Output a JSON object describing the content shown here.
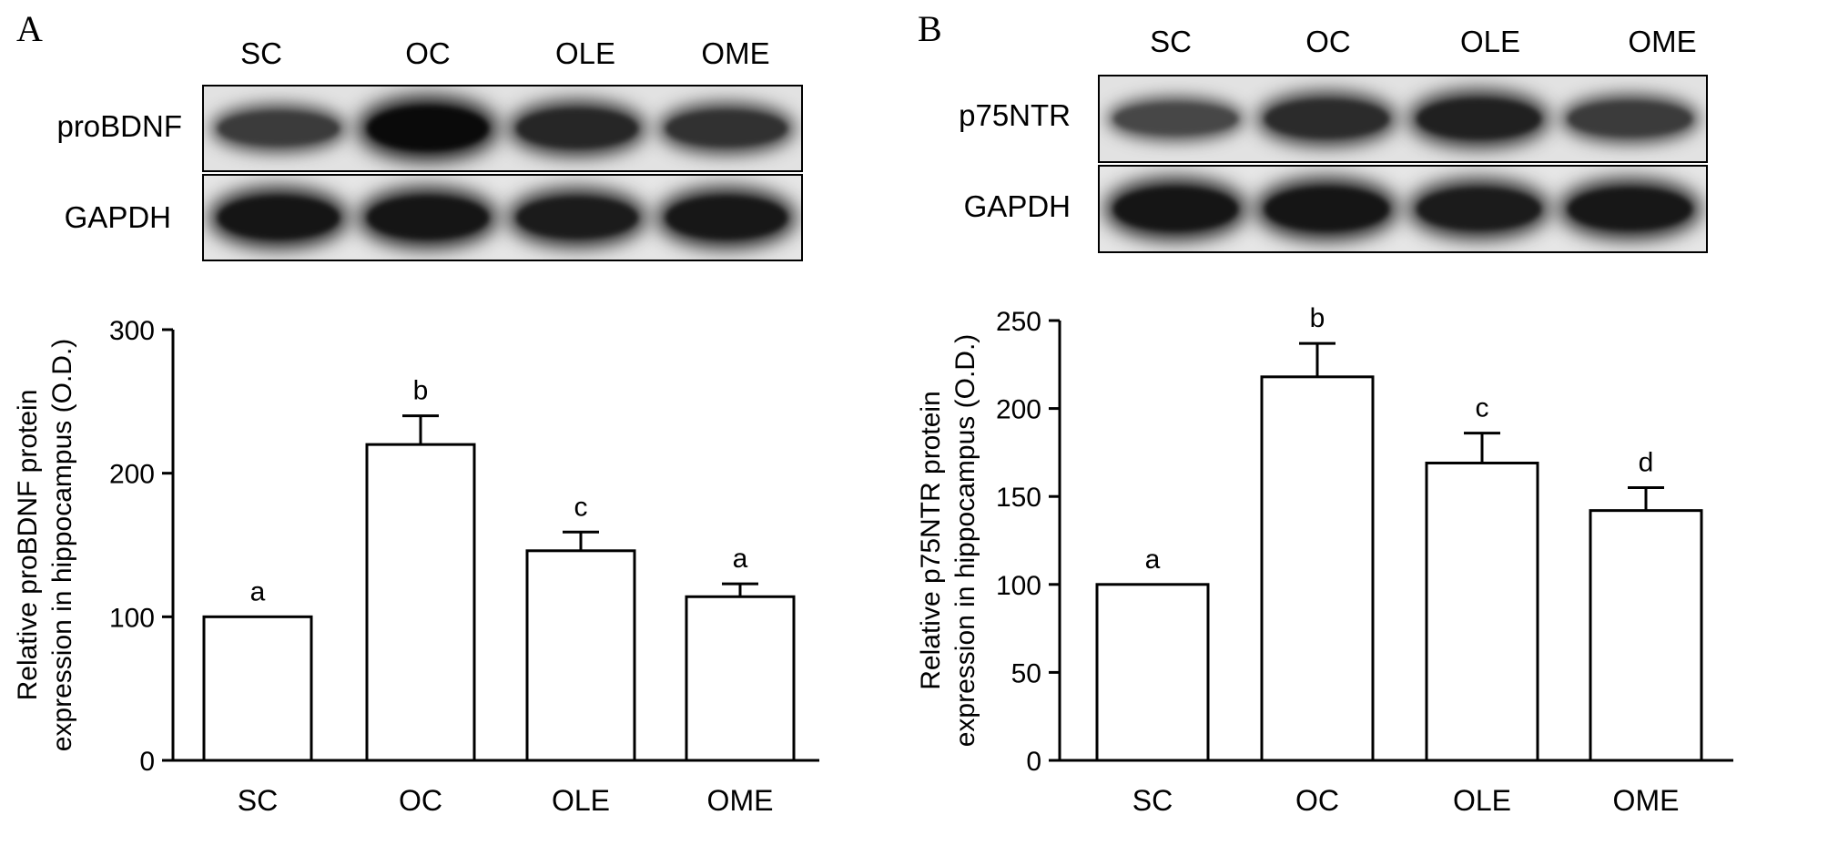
{
  "panels": [
    {
      "letter": "A",
      "lanes": [
        "SC",
        "OC",
        "OLE",
        "OME"
      ],
      "blot_rows": [
        {
          "label": "proBDNF",
          "intensity": [
            0.55,
            1.0,
            0.75,
            0.65
          ]
        },
        {
          "label": "GAPDH",
          "intensity": [
            0.9,
            0.9,
            0.85,
            0.88
          ]
        }
      ]
    },
    {
      "letter": "B",
      "lanes": [
        "SC",
        "OC",
        "OLE",
        "OME"
      ],
      "blot_rows": [
        {
          "label": "p75NTR",
          "intensity": [
            0.45,
            0.7,
            0.8,
            0.55
          ]
        },
        {
          "label": "GAPDH",
          "intensity": [
            0.9,
            0.9,
            0.85,
            0.88
          ]
        }
      ]
    }
  ],
  "chart_data": [
    {
      "type": "bar",
      "categories": [
        "SC",
        "OC",
        "OLE",
        "OME"
      ],
      "values": [
        100,
        220,
        146,
        114
      ],
      "errors": [
        0,
        20,
        13,
        9
      ],
      "annotations": [
        "a",
        "b",
        "c",
        "a"
      ],
      "ylabel_lines": [
        "Relative proBDNF protein",
        "expression in hippocampus (O.D.)"
      ],
      "ylim": [
        0,
        300
      ],
      "yticks": [
        0,
        100,
        200,
        300
      ],
      "grid": false
    },
    {
      "type": "bar",
      "categories": [
        "SC",
        "OC",
        "OLE",
        "OME"
      ],
      "values": [
        100,
        218,
        169,
        142
      ],
      "errors": [
        0,
        19,
        17,
        13
      ],
      "annotations": [
        "a",
        "b",
        "c",
        "d"
      ],
      "ylabel_lines": [
        "Relative p75NTR protein",
        "expression in hippocampus (O.D.)"
      ],
      "ylim": [
        0,
        250
      ],
      "yticks": [
        0,
        50,
        100,
        150,
        200,
        250
      ],
      "grid": false
    }
  ]
}
